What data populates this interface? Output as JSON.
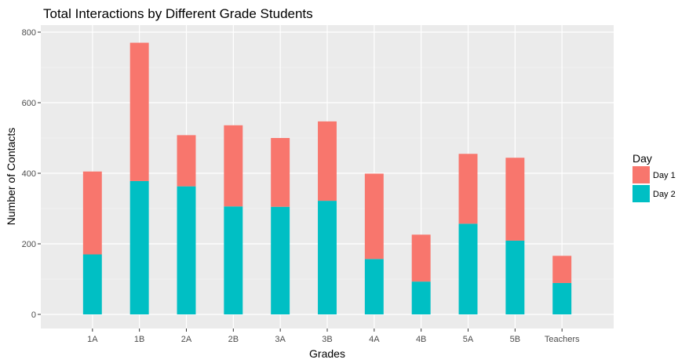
{
  "chart_data": {
    "type": "bar",
    "stacked": true,
    "title": "Total Interactions by Different Grade Students",
    "xlabel": "Grades",
    "ylabel": "Number of Contacts",
    "categories": [
      "1A",
      "1B",
      "2A",
      "2B",
      "3A",
      "3B",
      "4A",
      "4B",
      "5A",
      "5B",
      "Teachers"
    ],
    "series": [
      {
        "name": "Day 1",
        "color": "#f8766d",
        "values": [
          235,
          392,
          145,
          230,
          195,
          225,
          242,
          133,
          198,
          235,
          77
        ]
      },
      {
        "name": "Day 2",
        "color": "#00bfc4",
        "values": [
          170,
          378,
          363,
          306,
          305,
          322,
          157,
          93,
          257,
          209,
          89
        ]
      }
    ],
    "ylim": [
      -40,
      820
    ],
    "yticks": [
      0,
      200,
      400,
      600,
      800
    ],
    "grid": true,
    "legend": {
      "title": "Day",
      "position": "right"
    }
  }
}
